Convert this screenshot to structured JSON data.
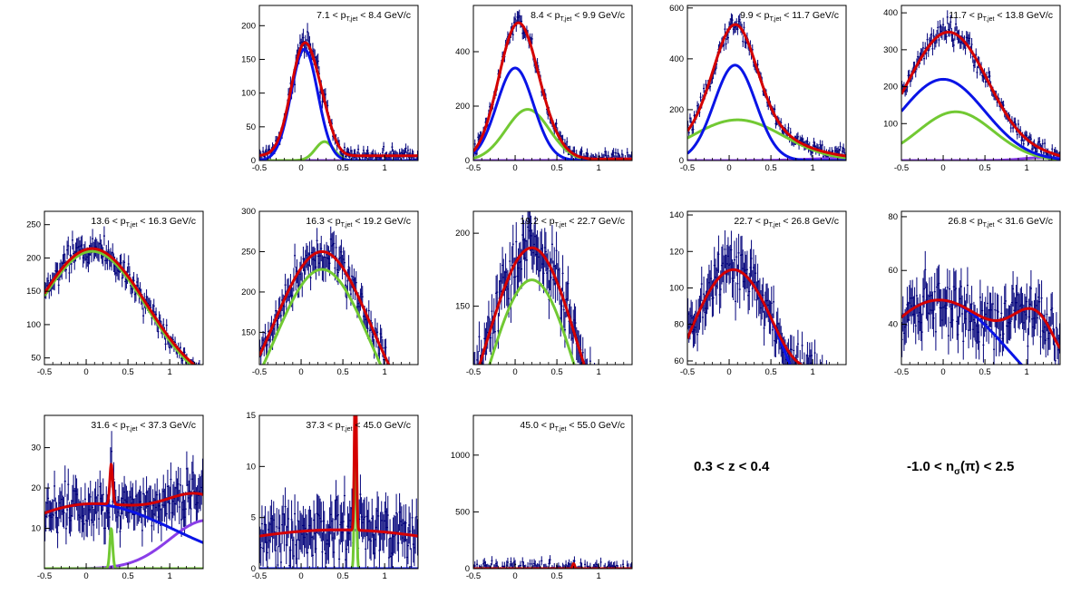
{
  "side_labels": {
    "z_cut": {
      "pre": "0.3 < z < 0.4"
    },
    "nsigma_cut": {
      "pre": "-1.0 < n",
      "sub": "σ",
      "post": "(π) < 2.5"
    }
  },
  "colors": {
    "data": "#00007a",
    "total": "#d40000",
    "pion": "#0a14e6",
    "kaon": "#72c933",
    "proton": "#8a3ee8",
    "axis": "#000000"
  },
  "chart_data": [
    {
      "type": "scatter",
      "title": {
        "pre": "7.1 < p",
        "sub": "T,jet",
        "post": " < 8.4 GeV/c"
      },
      "xlim": [
        -0.5,
        1.4
      ],
      "ylim": [
        0,
        230
      ],
      "xticks": [
        "-0.5",
        "0",
        "0.5",
        "1"
      ],
      "yticks": [
        "0",
        "50",
        "100",
        "150",
        "200"
      ],
      "grid": false,
      "components": {
        "pion": {
          "mu": 0.04,
          "sigma": 0.16,
          "amp": 165
        },
        "kaon": {
          "mu": 0.28,
          "sigma": 0.11,
          "amp": 28
        },
        "proton": {
          "mu": 1.2,
          "sigma": 0.4,
          "amp": 0
        },
        "baseline": 7
      }
    },
    {
      "type": "scatter",
      "title": {
        "pre": "8.4 < p",
        "sub": "T,jet",
        "post": " < 9.9 GeV/c"
      },
      "xlim": [
        -0.5,
        1.4
      ],
      "ylim": [
        0,
        570
      ],
      "xticks": [
        "-0.5",
        "0",
        "0.5",
        "1"
      ],
      "yticks": [
        "0",
        "200",
        "400"
      ],
      "grid": false,
      "components": {
        "pion": {
          "mu": 0.0,
          "sigma": 0.22,
          "amp": 340
        },
        "kaon": {
          "mu": 0.15,
          "sigma": 0.26,
          "amp": 188
        },
        "proton": {
          "mu": 1.3,
          "sigma": 0.4,
          "amp": 6
        },
        "baseline": 0
      }
    },
    {
      "type": "scatter",
      "title": {
        "pre": "9.9 < p",
        "sub": "T,jet",
        "post": " < 11.7 GeV/c"
      },
      "xlim": [
        -0.5,
        1.4
      ],
      "ylim": [
        0,
        610
      ],
      "xticks": [
        "-0.5",
        "0",
        "0.5",
        "1"
      ],
      "yticks": [
        "0",
        "200",
        "400",
        "600"
      ],
      "grid": false,
      "components": {
        "pion": {
          "mu": 0.07,
          "sigma": 0.25,
          "amp": 375
        },
        "kaon": {
          "mu": 0.1,
          "sigma": 0.55,
          "amp": 160
        },
        "proton": {
          "mu": 1.3,
          "sigma": 0.4,
          "amp": 8
        },
        "baseline": 0
      }
    },
    {
      "type": "scatter",
      "title": {
        "pre": "11.7 < p",
        "sub": "T,jet",
        "post": " < 13.8 GeV/c"
      },
      "xlim": [
        -0.5,
        1.4
      ],
      "ylim": [
        0,
        420
      ],
      "xticks": [
        "-0.5",
        "0",
        "0.5",
        "1"
      ],
      "yticks": [
        "100",
        "200",
        "300",
        "400"
      ],
      "grid": false,
      "components": {
        "pion": {
          "mu": 0.0,
          "sigma": 0.5,
          "amp": 220
        },
        "kaon": {
          "mu": 0.15,
          "sigma": 0.45,
          "amp": 132
        },
        "proton": {
          "mu": 1.2,
          "sigma": 0.25,
          "amp": 8
        },
        "baseline": 0
      }
    },
    {
      "type": "scatter",
      "title": {
        "pre": "13.6 < p",
        "sub": "T,jet",
        "post": " < 16.3 GeV/c"
      },
      "xlim": [
        -0.5,
        1.4
      ],
      "ylim": [
        40,
        270
      ],
      "xticks": [
        "-0.5",
        "0",
        "0.5",
        "1"
      ],
      "yticks": [
        "50",
        "100",
        "150",
        "200",
        "250"
      ],
      "grid": false,
      "components": {
        "pion": {
          "mu": 0.0,
          "sigma": 0.3,
          "amp": 0
        },
        "kaon": {
          "mu": 0.07,
          "sigma": 0.65,
          "amp": 210
        },
        "proton": {
          "mu": 1.0,
          "sigma": 0.4,
          "amp": 0
        },
        "baseline": 0,
        "total_offset": 4
      }
    },
    {
      "type": "scatter",
      "title": {
        "pre": "16.3 < p",
        "sub": "T,jet",
        "post": " < 19.2 GeV/c"
      },
      "xlim": [
        -0.5,
        1.4
      ],
      "ylim": [
        110,
        300
      ],
      "xticks": [
        "-0.5",
        "0",
        "0.5",
        "1"
      ],
      "yticks": [
        "150",
        "200",
        "250",
        "300"
      ],
      "grid": false,
      "components": {
        "pion": {
          "mu": 0.0,
          "sigma": 0.3,
          "amp": 0
        },
        "kaon": {
          "mu": 0.25,
          "sigma": 0.58,
          "amp": 228
        },
        "proton": {
          "mu": 1.0,
          "sigma": 0.4,
          "amp": 0
        },
        "baseline": 0,
        "total_offset": 22
      }
    },
    {
      "type": "scatter",
      "title": {
        "pre": "19.2 < p",
        "sub": "T,jet",
        "post": " < 22.7 GeV/c"
      },
      "xlim": [
        -0.5,
        1.4
      ],
      "ylim": [
        110,
        215
      ],
      "xticks": [
        "-0.5",
        "0",
        "0.5",
        "1"
      ],
      "yticks": [
        "150",
        "200"
      ],
      "grid": false,
      "components": {
        "pion": {
          "mu": 0.0,
          "sigma": 0.3,
          "amp": 0
        },
        "kaon": {
          "mu": 0.2,
          "sigma": 0.55,
          "amp": 168
        },
        "proton": {
          "mu": 1.0,
          "sigma": 0.4,
          "amp": 0
        },
        "baseline": 0,
        "total_offset": 22
      }
    },
    {
      "type": "scatter",
      "title": {
        "pre": "22.7 < p",
        "sub": "T,jet",
        "post": " < 26.8 GeV/c"
      },
      "xlim": [
        -0.5,
        1.4
      ],
      "ylim": [
        58,
        142
      ],
      "xticks": [
        "-0.5",
        "0",
        "0.5",
        "1"
      ],
      "yticks": [
        "60",
        "80",
        "100",
        "120",
        "140"
      ],
      "grid": false,
      "components": {
        "pion": {
          "mu": 0.05,
          "sigma": 0.6,
          "amp": 110
        },
        "kaon": {
          "mu": 0.9,
          "sigma": 0.3,
          "amp": 0
        },
        "proton": {
          "mu": 1.0,
          "sigma": 0.4,
          "amp": 0
        },
        "baseline": 0,
        "extra_bump": {
          "mu": 1.1,
          "sigma": 0.22,
          "amp": 25
        }
      }
    },
    {
      "type": "scatter",
      "title": {
        "pre": "26.8 < p",
        "sub": "T,jet",
        "post": " < 31.6 GeV/c"
      },
      "xlim": [
        -0.5,
        1.4
      ],
      "ylim": [
        25,
        82
      ],
      "xticks": [
        "-0.5",
        "0",
        "0.5",
        "1"
      ],
      "yticks": [
        "40",
        "60",
        "80"
      ],
      "grid": false,
      "components": {
        "pion": {
          "mu": -0.05,
          "sigma": 0.85,
          "amp": 49
        },
        "kaon": {
          "mu": 1.0,
          "sigma": 0.3,
          "amp": 0
        },
        "proton": {
          "mu": 1.45,
          "sigma": 0.05,
          "amp": 2
        },
        "baseline": 0,
        "extra_bump": {
          "mu": 1.15,
          "sigma": 0.3,
          "amp": 26
        }
      }
    },
    {
      "type": "scatter",
      "title": {
        "pre": "31.6 < p",
        "sub": "T,jet",
        "post": " < 37.3 GeV/c"
      },
      "xlim": [
        -0.5,
        1.4
      ],
      "ylim": [
        0,
        38
      ],
      "xticks": [
        "-0.5",
        "0",
        "0.5",
        "1"
      ],
      "yticks": [
        "10",
        "20",
        "30"
      ],
      "grid": false,
      "components": {
        "pion": {
          "mu": 0.05,
          "sigma": 1.0,
          "amp": 16
        },
        "kaon": {
          "mu": 0.3,
          "sigma": 0.02,
          "amp": 4
        },
        "proton": {
          "mu": 1.45,
          "sigma": 0.45,
          "amp": 12
        },
        "baseline": 0,
        "spike": {
          "mu": 0.3,
          "sigma": 0.015,
          "amp": 6
        }
      }
    },
    {
      "type": "scatter",
      "title": {
        "pre": "37.3 < p",
        "sub": "T,jet",
        "post": " < 45.0 GeV/c"
      },
      "xlim": [
        -0.5,
        1.4
      ],
      "ylim": [
        0,
        15
      ],
      "xticks": [
        "-0.5",
        "0",
        "0.5",
        "1"
      ],
      "yticks": [
        "0",
        "5",
        "10",
        "15"
      ],
      "grid": false,
      "components": {
        "pion": {
          "mu": 0.0,
          "sigma": 0.3,
          "amp": 0
        },
        "kaon": {
          "mu": 0.65,
          "sigma": 0.012,
          "amp": 16
        },
        "proton": {
          "mu": 0.45,
          "sigma": 1.6,
          "amp": 3.8
        },
        "baseline": 0
      }
    },
    {
      "type": "scatter",
      "title": {
        "pre": "45.0 < p",
        "sub": "T,jet",
        "post": " < 55.0 GeV/c"
      },
      "xlim": [
        -0.5,
        1.4
      ],
      "ylim": [
        0,
        1350
      ],
      "xticks": [
        "-0.5",
        "0",
        "0.5",
        "1"
      ],
      "yticks": [
        "0",
        "500",
        "1000"
      ],
      "grid": false,
      "components": {
        "pion": {
          "mu": 0.0,
          "sigma": 0.3,
          "amp": 0
        },
        "kaon": {
          "mu": 0.7,
          "sigma": 0.012,
          "amp": 45
        },
        "proton": {
          "mu": 0.5,
          "sigma": 1.5,
          "amp": 0
        },
        "baseline": 0
      }
    }
  ]
}
